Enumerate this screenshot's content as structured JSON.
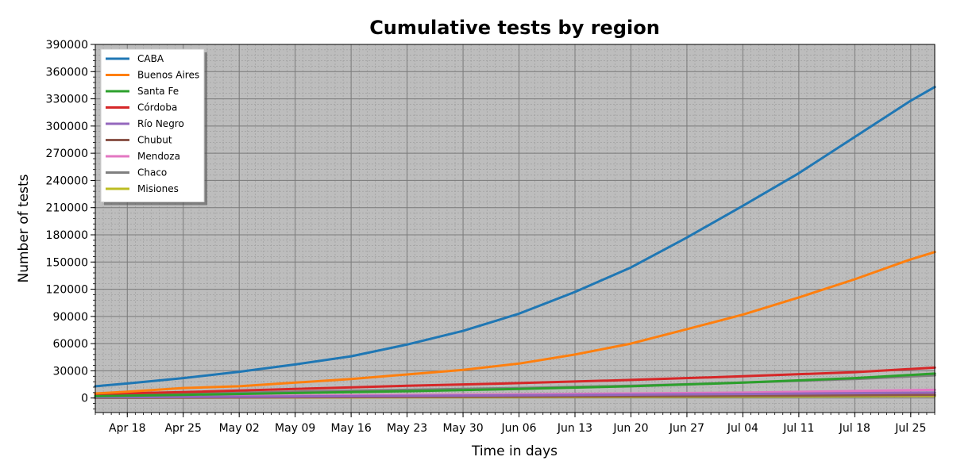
{
  "chart_data": {
    "type": "line",
    "title": "Cumulative tests by region",
    "xlabel": "Time in days",
    "ylabel": "Number of tests",
    "x_start": "2020-04-14",
    "x_end": "2020-07-28",
    "x_ticks": [
      {
        "date": "2020-04-18",
        "label": "Apr 18"
      },
      {
        "date": "2020-04-25",
        "label": "Apr 25"
      },
      {
        "date": "2020-05-02",
        "label": "May 02"
      },
      {
        "date": "2020-05-09",
        "label": "May 09"
      },
      {
        "date": "2020-05-16",
        "label": "May 16"
      },
      {
        "date": "2020-05-23",
        "label": "May 23"
      },
      {
        "date": "2020-05-30",
        "label": "May 30"
      },
      {
        "date": "2020-06-06",
        "label": "Jun 06"
      },
      {
        "date": "2020-06-13",
        "label": "Jun 13"
      },
      {
        "date": "2020-06-20",
        "label": "Jun 20"
      },
      {
        "date": "2020-06-27",
        "label": "Jun 27"
      },
      {
        "date": "2020-07-04",
        "label": "Jul 04"
      },
      {
        "date": "2020-07-11",
        "label": "Jul 11"
      },
      {
        "date": "2020-07-18",
        "label": "Jul 18"
      },
      {
        "date": "2020-07-25",
        "label": "Jul 25"
      }
    ],
    "ylim": [
      -16000,
      390000
    ],
    "y_ticks": [
      0,
      30000,
      60000,
      90000,
      120000,
      150000,
      180000,
      210000,
      240000,
      270000,
      300000,
      330000,
      360000,
      390000
    ],
    "grid": true,
    "plot_background": "#bdbdbd",
    "legend_position": "top-left",
    "series": [
      {
        "name": "CABA",
        "color": "#1f77b4",
        "x": [
          "2020-04-14",
          "2020-04-18",
          "2020-04-25",
          "2020-05-02",
          "2020-05-09",
          "2020-05-16",
          "2020-05-23",
          "2020-05-30",
          "2020-06-06",
          "2020-06-13",
          "2020-06-20",
          "2020-06-27",
          "2020-07-04",
          "2020-07-11",
          "2020-07-18",
          "2020-07-25",
          "2020-07-28"
        ],
        "y": [
          13000,
          16000,
          22000,
          29000,
          37000,
          46000,
          59000,
          74000,
          93000,
          117000,
          144000,
          177000,
          212000,
          248000,
          288000,
          328000,
          343000
        ]
      },
      {
        "name": "Buenos Aires",
        "color": "#ff7f0e",
        "x": [
          "2020-04-14",
          "2020-04-18",
          "2020-04-25",
          "2020-05-02",
          "2020-05-09",
          "2020-05-16",
          "2020-05-23",
          "2020-05-30",
          "2020-06-06",
          "2020-06-13",
          "2020-06-20",
          "2020-06-27",
          "2020-07-04",
          "2020-07-11",
          "2020-07-18",
          "2020-07-25",
          "2020-07-28"
        ],
        "y": [
          5000,
          7000,
          11000,
          13000,
          17000,
          21000,
          26000,
          31000,
          38000,
          48000,
          60000,
          76000,
          92000,
          111000,
          131000,
          153000,
          161000
        ]
      },
      {
        "name": "Santa Fe",
        "color": "#2ca02c",
        "x": [
          "2020-04-14",
          "2020-04-25",
          "2020-05-09",
          "2020-05-23",
          "2020-06-06",
          "2020-06-20",
          "2020-07-04",
          "2020-07-18",
          "2020-07-28"
        ],
        "y": [
          2000,
          3500,
          5500,
          7500,
          10000,
          13000,
          17000,
          22000,
          27000
        ]
      },
      {
        "name": "Córdoba",
        "color": "#d62728",
        "x": [
          "2020-04-14",
          "2020-04-25",
          "2020-05-09",
          "2020-05-23",
          "2020-06-06",
          "2020-06-20",
          "2020-07-04",
          "2020-07-18",
          "2020-07-28"
        ],
        "y": [
          4500,
          6500,
          10000,
          13500,
          16500,
          20000,
          24000,
          28500,
          33500
        ]
      },
      {
        "name": "Río Negro",
        "color": "#9467bd",
        "x": [
          "2020-04-14",
          "2020-05-09",
          "2020-06-06",
          "2020-07-04",
          "2020-07-28"
        ],
        "y": [
          800,
          1800,
          3000,
          4500,
          6000
        ]
      },
      {
        "name": "Chubut",
        "color": "#8c564b",
        "x": [
          "2020-04-14",
          "2020-05-09",
          "2020-06-06",
          "2020-07-04",
          "2020-07-28"
        ],
        "y": [
          300,
          800,
          1500,
          2500,
          3500
        ]
      },
      {
        "name": "Mendoza",
        "color": "#e377c2",
        "x": [
          "2020-04-14",
          "2020-05-09",
          "2020-06-06",
          "2020-07-04",
          "2020-07-28"
        ],
        "y": [
          1000,
          2500,
          4000,
          6000,
          9000
        ]
      },
      {
        "name": "Chaco",
        "color": "#7f7f7f",
        "x": [
          "2020-04-14",
          "2020-04-25",
          "2020-05-09",
          "2020-05-23",
          "2020-06-06",
          "2020-06-20",
          "2020-07-04",
          "2020-07-18",
          "2020-07-28"
        ],
        "y": [
          2500,
          4500,
          7000,
          9000,
          11000,
          13500,
          17000,
          21000,
          25000
        ]
      },
      {
        "name": "Misiones",
        "color": "#bcbd22",
        "x": [
          "2020-04-14",
          "2020-05-09",
          "2020-06-06",
          "2020-07-04",
          "2020-07-28"
        ],
        "y": [
          300,
          600,
          1000,
          1600,
          2200
        ]
      }
    ]
  }
}
